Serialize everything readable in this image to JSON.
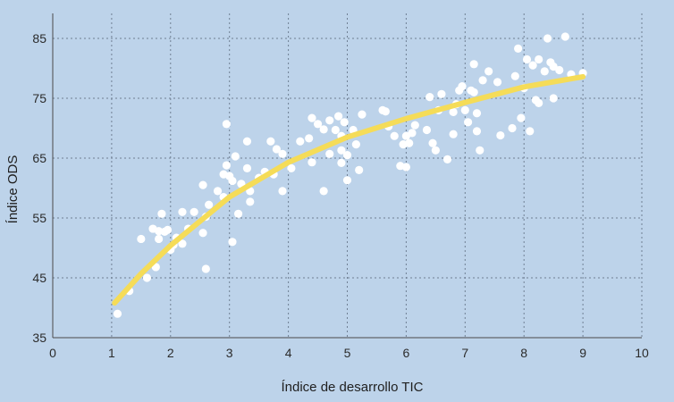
{
  "chart_data": {
    "type": "scatter",
    "title": "",
    "xlabel": "Índice de desarrollo TIC",
    "ylabel": "Índice ODS",
    "xlim": [
      0,
      10
    ],
    "ylim": [
      35,
      87
    ],
    "x_ticks": [
      "0",
      "1",
      "2",
      "3",
      "4",
      "5",
      "6",
      "7",
      "8",
      "9",
      "10"
    ],
    "y_ticks": [
      "35",
      "45",
      "55",
      "65",
      "75",
      "85"
    ],
    "grid": true,
    "colors": {
      "background": "#bdd3ea",
      "points": "#ffffff",
      "trend": "#f5dc58"
    },
    "series": [
      {
        "points": [
          [
            1.1,
            39.0
          ],
          [
            1.3,
            42.8
          ],
          [
            1.5,
            51.5
          ],
          [
            1.6,
            45.0
          ],
          [
            1.7,
            53.2
          ],
          [
            1.75,
            46.8
          ],
          [
            1.8,
            51.5
          ],
          [
            1.8,
            52.8
          ],
          [
            1.85,
            55.7
          ],
          [
            1.9,
            52.7
          ],
          [
            1.95,
            53.0
          ],
          [
            2.0,
            49.7
          ],
          [
            2.05,
            50.5
          ],
          [
            2.1,
            51.7
          ],
          [
            2.2,
            56.0
          ],
          [
            2.2,
            50.7
          ],
          [
            2.3,
            53.2
          ],
          [
            2.4,
            56.0
          ],
          [
            2.55,
            60.5
          ],
          [
            2.55,
            52.5
          ],
          [
            2.6,
            46.5
          ],
          [
            2.6,
            55.2
          ],
          [
            2.65,
            57.2
          ],
          [
            2.8,
            59.5
          ],
          [
            2.9,
            62.3
          ],
          [
            2.9,
            58.5
          ],
          [
            2.95,
            63.8
          ],
          [
            2.95,
            70.7
          ],
          [
            3.0,
            62.0
          ],
          [
            3.05,
            61.2
          ],
          [
            3.05,
            51.0
          ],
          [
            3.1,
            65.3
          ],
          [
            3.15,
            55.7
          ],
          [
            3.2,
            60.7
          ],
          [
            3.3,
            67.8
          ],
          [
            3.3,
            63.3
          ],
          [
            3.35,
            59.5
          ],
          [
            3.35,
            57.7
          ],
          [
            3.5,
            61.7
          ],
          [
            3.6,
            62.7
          ],
          [
            3.7,
            67.8
          ],
          [
            3.75,
            62.3
          ],
          [
            3.8,
            66.5
          ],
          [
            3.9,
            65.7
          ],
          [
            3.9,
            59.5
          ],
          [
            4.05,
            63.3
          ],
          [
            4.2,
            67.8
          ],
          [
            4.35,
            68.3
          ],
          [
            4.4,
            64.3
          ],
          [
            4.4,
            71.7
          ],
          [
            4.5,
            70.7
          ],
          [
            4.6,
            69.8
          ],
          [
            4.6,
            59.5
          ],
          [
            4.7,
            71.3
          ],
          [
            4.7,
            65.7
          ],
          [
            4.8,
            69.7
          ],
          [
            4.85,
            72.0
          ],
          [
            4.9,
            68.7
          ],
          [
            4.9,
            66.3
          ],
          [
            4.9,
            64.2
          ],
          [
            4.95,
            71.0
          ],
          [
            5.0,
            65.5
          ],
          [
            5.0,
            61.3
          ],
          [
            5.1,
            69.7
          ],
          [
            5.15,
            67.3
          ],
          [
            5.2,
            63.0
          ],
          [
            5.25,
            72.3
          ],
          [
            5.6,
            73.0
          ],
          [
            5.65,
            72.8
          ],
          [
            5.7,
            70.3
          ],
          [
            5.8,
            68.7
          ],
          [
            5.9,
            63.7
          ],
          [
            5.95,
            67.3
          ],
          [
            6.0,
            68.7
          ],
          [
            6.0,
            63.5
          ],
          [
            6.05,
            67.5
          ],
          [
            6.1,
            69.2
          ],
          [
            6.15,
            70.5
          ],
          [
            6.35,
            69.7
          ],
          [
            6.4,
            75.2
          ],
          [
            6.45,
            67.5
          ],
          [
            6.5,
            66.3
          ],
          [
            6.55,
            73.0
          ],
          [
            6.6,
            75.7
          ],
          [
            6.7,
            64.8
          ],
          [
            6.8,
            69.0
          ],
          [
            6.8,
            72.7
          ],
          [
            6.85,
            74.0
          ],
          [
            6.9,
            76.3
          ],
          [
            6.95,
            77.0
          ],
          [
            7.0,
            73.0
          ],
          [
            7.05,
            71.0
          ],
          [
            7.1,
            76.3
          ],
          [
            7.15,
            80.7
          ],
          [
            7.15,
            76.0
          ],
          [
            7.2,
            72.5
          ],
          [
            7.2,
            69.5
          ],
          [
            7.25,
            66.3
          ],
          [
            7.3,
            78.0
          ],
          [
            7.4,
            79.5
          ],
          [
            7.55,
            77.7
          ],
          [
            7.6,
            68.8
          ],
          [
            7.8,
            70.0
          ],
          [
            7.85,
            78.7
          ],
          [
            7.9,
            83.3
          ],
          [
            7.95,
            71.7
          ],
          [
            8.0,
            76.7
          ],
          [
            8.05,
            81.5
          ],
          [
            8.1,
            69.5
          ],
          [
            8.15,
            80.5
          ],
          [
            8.2,
            74.7
          ],
          [
            8.25,
            74.2
          ],
          [
            8.25,
            81.5
          ],
          [
            8.35,
            79.5
          ],
          [
            8.4,
            85.0
          ],
          [
            8.45,
            81.0
          ],
          [
            8.5,
            80.3
          ],
          [
            8.5,
            75.0
          ],
          [
            8.6,
            79.7
          ],
          [
            8.7,
            85.3
          ],
          [
            8.8,
            79.0
          ],
          [
            9.0,
            79.2
          ]
        ]
      }
    ],
    "trendline": {
      "x_range": [
        1.05,
        9.0
      ],
      "points": [
        [
          1.05,
          40.8
        ],
        [
          1.5,
          45.7
        ],
        [
          2,
          50.4
        ],
        [
          3,
          58.5
        ],
        [
          4,
          64.3
        ],
        [
          5,
          68.5
        ],
        [
          6,
          71.6
        ],
        [
          7,
          74.3
        ],
        [
          8,
          76.9
        ],
        [
          9,
          78.6
        ]
      ]
    }
  }
}
